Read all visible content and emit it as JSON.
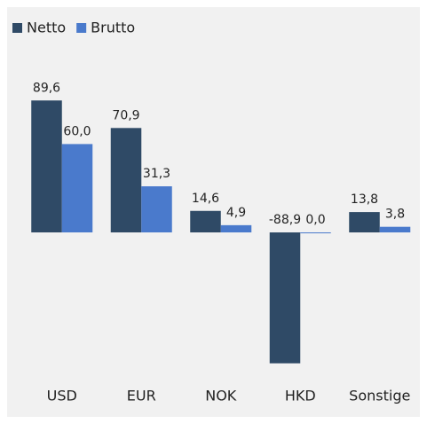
{
  "chart_data": {
    "type": "bar",
    "categories": [
      "USD",
      "EUR",
      "NOK",
      "HKD",
      "Sonstige"
    ],
    "series": [
      {
        "name": "Netto",
        "color": "#2f4a66",
        "values": [
          89.6,
          70.9,
          14.6,
          -88.9,
          13.8
        ],
        "value_labels": [
          "89,6",
          "70,9",
          "14,6",
          "-88,9",
          "13,8"
        ]
      },
      {
        "name": "Brutto",
        "color": "#4a7acc",
        "values": [
          60.0,
          31.3,
          4.9,
          0.0,
          3.8
        ],
        "value_labels": [
          "60,0",
          "31,3",
          "4,9",
          "0,0",
          "3,8"
        ]
      }
    ],
    "legend": "top-left"
  }
}
